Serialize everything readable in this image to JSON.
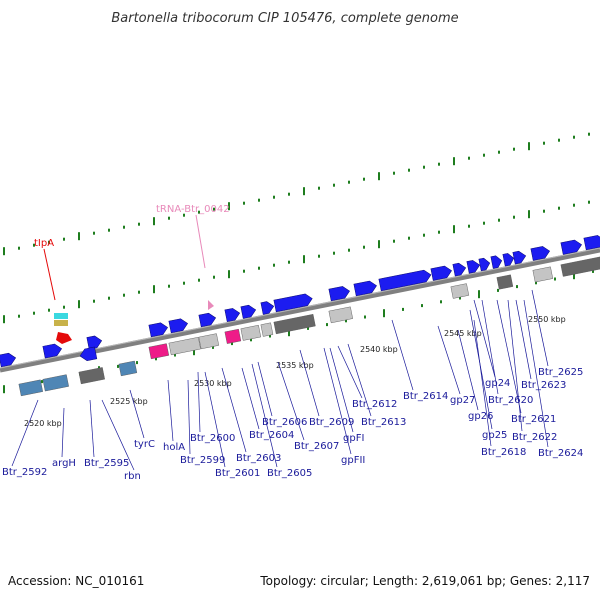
{
  "title": "Bartonella tribocorum CIP 105476, complete genome",
  "footer": {
    "accession": "Accession: NC_010161",
    "summary": "Topology: circular; Length: 2,619,061 bp; Genes: 2,117"
  },
  "colors": {
    "forward_gene": "#1c1cf0",
    "rrna": "#ee1c88",
    "trna_label": "#e88aba",
    "trna_red": "#e40a0a",
    "pseudo_gray": "#c4c4c4",
    "dark_gray": "#666666",
    "cds_blue": "#4f86b5",
    "label_blue": "#1a1a9a",
    "backbone": "#808080",
    "tick_green": "#1e7d1e"
  },
  "scale_labels": [
    "2520 kbp",
    "2525 kbp",
    "2530 kbp",
    "2535 kbp",
    "2540 kbp",
    "2545 kbp",
    "2550 kbp"
  ],
  "upper_labels": [
    {
      "text": "tRNA-Btr_0042",
      "color": "#e88aba"
    },
    {
      "text": "tIpA",
      "color": "#e40a0a"
    }
  ],
  "gene_labels": [
    "Btr_2592",
    "argH",
    "Btr_2595",
    "rbn",
    "tyrC",
    "holA",
    "Btr_2599",
    "Btr_2600",
    "Btr_2601",
    "Btr_2603",
    "Btr_2604",
    "Btr_2605",
    "Btr_2606",
    "Btr_2607",
    "Btr_2609",
    "gpFI",
    "gpFII",
    "Btr_2612",
    "Btr_2613",
    "Btr_2614",
    "gp27",
    "gp26",
    "gp25",
    "gp24",
    "Btr_2618",
    "Btr_2620",
    "Btr_2621",
    "Btr_2622",
    "Btr_2623",
    "Btr_2624",
    "Btr_2625"
  ]
}
